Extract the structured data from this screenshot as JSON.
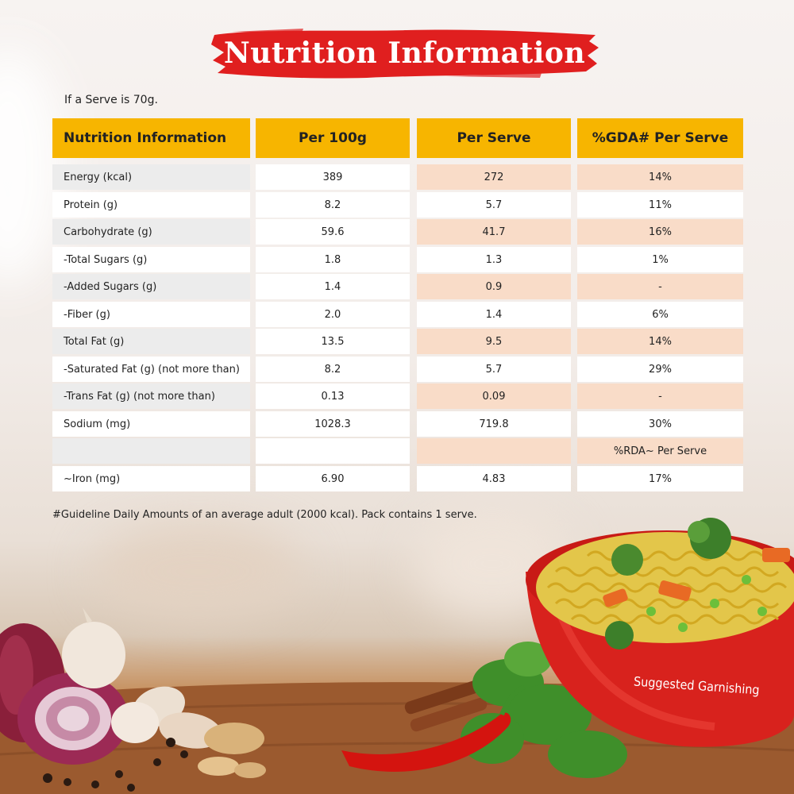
{
  "title": "Nutrition Information",
  "serve_note": "If a Serve is 70g.",
  "table": {
    "headers": [
      "Nutrition Information",
      "Per 100g",
      "Per Serve",
      "%GDA# Per Serve"
    ],
    "rows": [
      [
        "Energy (kcal)",
        "389",
        "272",
        "14%"
      ],
      [
        "Protein (g)",
        "8.2",
        "5.7",
        "11%"
      ],
      [
        "Carbohydrate (g)",
        "59.6",
        "41.7",
        "16%"
      ],
      [
        "-Total Sugars (g)",
        "1.8",
        "1.3",
        "1%"
      ],
      [
        "-Added Sugars (g)",
        "1.4",
        "0.9",
        "-"
      ],
      [
        "-Fiber (g)",
        "2.0",
        "1.4",
        "6%"
      ],
      [
        "Total Fat (g)",
        "13.5",
        "9.5",
        "14%"
      ],
      [
        "-Saturated Fat (g) (not more than)",
        "8.2",
        "5.7",
        "29%"
      ],
      [
        "-Trans Fat (g) (not more than)",
        "0.13",
        "0.09",
        "-"
      ],
      [
        "Sodium (mg)",
        "1028.3",
        "719.8",
        "30%"
      ],
      [
        "",
        "",
        "",
        "%RDA~ Per Serve"
      ],
      [
        "~Iron (mg)",
        "6.90",
        "4.83",
        "17%"
      ]
    ]
  },
  "footnote": "#Guideline Daily Amounts of an average adult (2000 kcal). Pack contains 1 serve.",
  "garnish_label": "Suggested Garnishing",
  "colors": {
    "header": "#f7b500",
    "title_brush": "#e01f1f",
    "peach": "#f9dcc8",
    "grey": "#ececec"
  }
}
